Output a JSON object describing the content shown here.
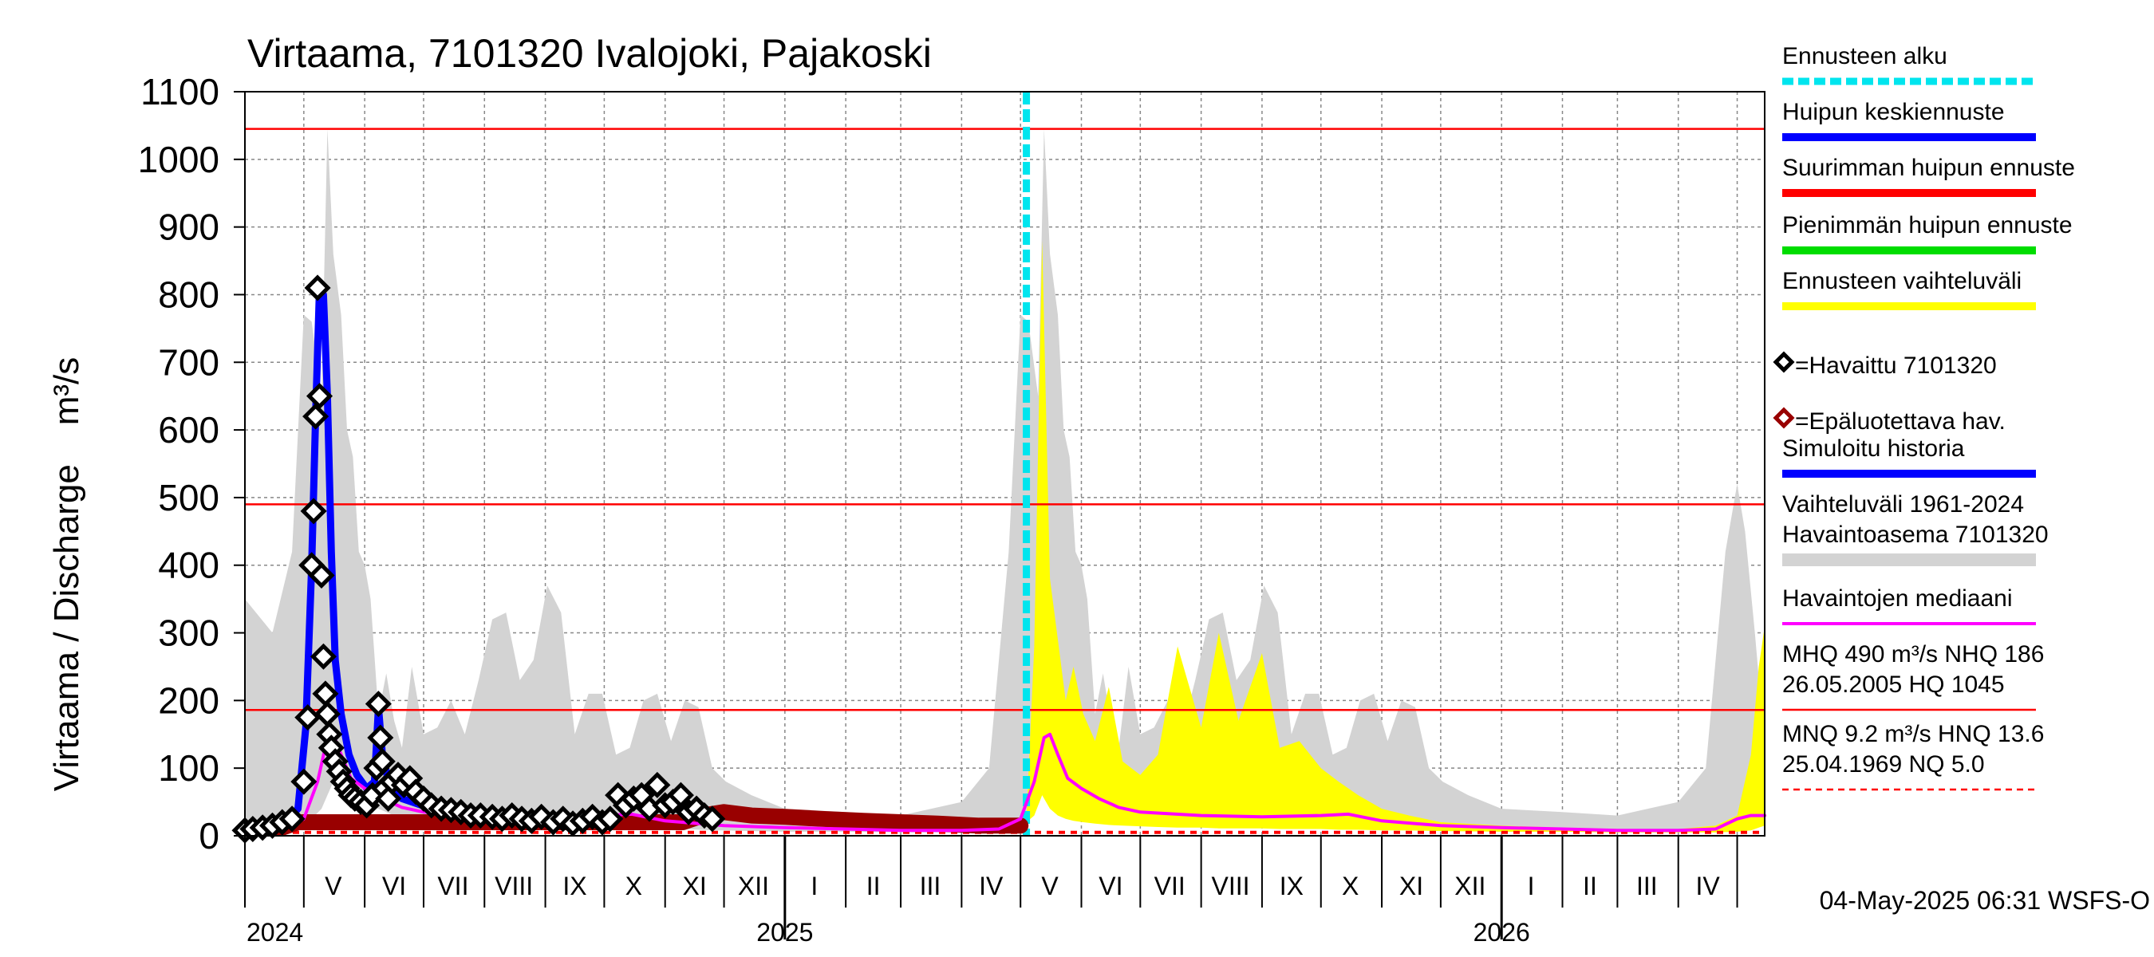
{
  "chart_data": {
    "type": "line",
    "title": "Virtaama, 7101320 Ivalojoki, Pajakoski",
    "ylabel": "Virtaama / Discharge    m³/s",
    "ylim": [
      0,
      1100
    ],
    "yticks": [
      0,
      100,
      200,
      300,
      400,
      500,
      600,
      700,
      800,
      900,
      1000,
      1100
    ],
    "x_range": [
      "2024-04-01",
      "2026-05-15"
    ],
    "month_labels": [
      "V",
      "VI",
      "VII",
      "VIII",
      "IX",
      "X",
      "XI",
      "XII",
      "I",
      "II",
      "III",
      "IV",
      "V",
      "VI",
      "VII",
      "VIII",
      "IX",
      "X",
      "XI",
      "XII",
      "I",
      "II",
      "III",
      "IV"
    ],
    "month_label_dates": [
      "2024-05-16",
      "2024-06-16",
      "2024-07-16",
      "2024-08-16",
      "2024-09-16",
      "2024-10-16",
      "2024-11-16",
      "2024-12-16",
      "2025-01-16",
      "2025-02-15",
      "2025-03-16",
      "2025-04-16",
      "2025-05-16",
      "2025-06-16",
      "2025-07-16",
      "2025-08-16",
      "2025-09-16",
      "2025-10-16",
      "2025-11-16",
      "2025-12-16",
      "2026-01-16",
      "2026-02-15",
      "2026-03-16",
      "2026-04-16"
    ],
    "year_labels": [
      "2024",
      "2025",
      "2026"
    ],
    "year_label_dates": [
      "2024-04-01",
      "2025-01-01",
      "2026-01-01"
    ],
    "forecast_start": "2025-05-04",
    "reference_lines": [
      {
        "name": "HQ",
        "value": 1045,
        "color": "#ff0000",
        "style": "solid"
      },
      {
        "name": "MHQ",
        "value": 490,
        "color": "#ff0000",
        "style": "solid"
      },
      {
        "name": "NHQ",
        "value": 186,
        "color": "#ff0000",
        "style": "solid"
      },
      {
        "name": "NQ",
        "value": 5.0,
        "color": "#ff0000",
        "style": "dashed"
      }
    ],
    "series": [
      {
        "name": "Vaihteluväli 1961-2024",
        "type": "area",
        "color": "#d3d3d3",
        "x": [
          "2024-04-01",
          "2024-04-15",
          "2024-04-25",
          "2024-05-01",
          "2024-05-05",
          "2024-05-10",
          "2024-05-13",
          "2024-05-16",
          "2024-05-20",
          "2024-05-23",
          "2024-05-26",
          "2024-05-29",
          "2024-06-01",
          "2024-06-04",
          "2024-06-08",
          "2024-06-12",
          "2024-06-16",
          "2024-06-20",
          "2024-06-25",
          "2024-07-01",
          "2024-07-08",
          "2024-07-15",
          "2024-07-22",
          "2024-07-29",
          "2024-08-05",
          "2024-08-12",
          "2024-08-19",
          "2024-08-26",
          "2024-09-02",
          "2024-09-09",
          "2024-09-16",
          "2024-09-23",
          "2024-09-30",
          "2024-10-07",
          "2024-10-14",
          "2024-10-21",
          "2024-10-28",
          "2024-11-04",
          "2024-11-11",
          "2024-11-18",
          "2024-11-25",
          "2024-12-02",
          "2024-12-15",
          "2025-01-01",
          "2025-02-01",
          "2025-03-01",
          "2025-04-01",
          "2025-04-15",
          "2025-04-25",
          "2025-05-01",
          "2025-05-05",
          "2025-05-10",
          "2025-05-13",
          "2025-05-16",
          "2025-05-20",
          "2025-05-23",
          "2025-05-26",
          "2025-05-29",
          "2025-06-01",
          "2025-06-04",
          "2025-06-08",
          "2025-06-12",
          "2025-06-16",
          "2025-06-20",
          "2025-06-25",
          "2025-07-01",
          "2025-07-08",
          "2025-07-15",
          "2025-07-22",
          "2025-07-29",
          "2025-08-05",
          "2025-08-12",
          "2025-08-19",
          "2025-08-26",
          "2025-09-02",
          "2025-09-09",
          "2025-09-16",
          "2025-09-23",
          "2025-09-30",
          "2025-10-07",
          "2025-10-14",
          "2025-10-21",
          "2025-10-28",
          "2025-11-04",
          "2025-11-11",
          "2025-11-18",
          "2025-11-25",
          "2025-12-02",
          "2025-12-15",
          "2026-01-01",
          "2026-02-01",
          "2026-03-01",
          "2026-04-01",
          "2026-04-15",
          "2026-04-25",
          "2026-05-01",
          "2026-05-05",
          "2026-05-10",
          "2026-05-13",
          "2026-05-15"
        ],
        "low": [
          6,
          6,
          8,
          15,
          25,
          40,
          60,
          80,
          90,
          85,
          75,
          65,
          55,
          45,
          40,
          35,
          30,
          28,
          25,
          22,
          20,
          18,
          17,
          16,
          16,
          15,
          15,
          16,
          16,
          16,
          17,
          17,
          16,
          15,
          14,
          13,
          12,
          11,
          10,
          9,
          8,
          8,
          7,
          6,
          6,
          5,
          5,
          6,
          10,
          20,
          30,
          50,
          70,
          80,
          90,
          85,
          75,
          65,
          55,
          45,
          40,
          35,
          30,
          28,
          25,
          22,
          20,
          18,
          17,
          16,
          16,
          15,
          15,
          16,
          16,
          16,
          17,
          17,
          16,
          15,
          14,
          13,
          12,
          11,
          10,
          9,
          8,
          8,
          7,
          6,
          6,
          5,
          5,
          6,
          10,
          20,
          30,
          50,
          60,
          70
        ],
        "high": [
          350,
          300,
          420,
          770,
          760,
          650,
          1045,
          860,
          770,
          600,
          560,
          420,
          400,
          350,
          180,
          240,
          170,
          130,
          250,
          150,
          160,
          200,
          150,
          230,
          320,
          330,
          230,
          260,
          370,
          330,
          150,
          210,
          210,
          120,
          130,
          200,
          210,
          140,
          200,
          190,
          100,
          80,
          60,
          40,
          35,
          30,
          50,
          100,
          420,
          770,
          760,
          650,
          1045,
          860,
          770,
          600,
          560,
          420,
          400,
          350,
          180,
          240,
          170,
          130,
          250,
          150,
          160,
          200,
          150,
          230,
          320,
          330,
          230,
          260,
          370,
          330,
          150,
          210,
          210,
          120,
          130,
          200,
          210,
          140,
          200,
          190,
          100,
          80,
          60,
          40,
          35,
          30,
          50,
          100,
          420,
          520,
          450,
          300,
          200,
          150
        ]
      },
      {
        "name": "Ennusteen vaihteluväli",
        "type": "area",
        "color": "#ffff00",
        "x": [
          "2025-05-04",
          "2025-05-08",
          "2025-05-12",
          "2025-05-16",
          "2025-05-20",
          "2025-05-24",
          "2025-05-28",
          "2025-06-02",
          "2025-06-08",
          "2025-06-15",
          "2025-06-22",
          "2025-07-01",
          "2025-07-10",
          "2025-07-20",
          "2025-08-01",
          "2025-08-10",
          "2025-08-20",
          "2025-09-01",
          "2025-09-10",
          "2025-09-20",
          "2025-10-01",
          "2025-10-10",
          "2025-10-20",
          "2025-11-01",
          "2025-11-15",
          "2025-12-01",
          "2026-01-01",
          "2026-02-01",
          "2026-03-01",
          "2026-04-01",
          "2026-04-20",
          "2026-05-01",
          "2026-05-08",
          "2026-05-12",
          "2026-05-15"
        ],
        "low": [
          20,
          30,
          60,
          40,
          30,
          25,
          22,
          20,
          18,
          16,
          15,
          14,
          13,
          12,
          12,
          11,
          11,
          11,
          10,
          10,
          10,
          9,
          9,
          8,
          8,
          7,
          6,
          6,
          5,
          5,
          5,
          6,
          8,
          12,
          15
        ],
        "high": [
          25,
          280,
          880,
          380,
          290,
          200,
          250,
          180,
          140,
          220,
          110,
          90,
          120,
          280,
          160,
          300,
          170,
          270,
          130,
          140,
          100,
          80,
          60,
          40,
          30,
          20,
          15,
          12,
          10,
          10,
          15,
          30,
          120,
          250,
          310
        ]
      },
      {
        "name": "Havaintojen mediaani",
        "type": "line",
        "color": "#ff00ff",
        "width": 4,
        "x": [
          "2024-04-01",
          "2024-04-20",
          "2024-05-01",
          "2024-05-08",
          "2024-05-13",
          "2024-05-16",
          "2024-05-20",
          "2024-05-25",
          "2024-06-01",
          "2024-06-10",
          "2024-06-20",
          "2024-07-01",
          "2024-08-01",
          "2024-09-01",
          "2024-10-01",
          "2024-10-15",
          "2024-11-01",
          "2024-12-01",
          "2025-01-01",
          "2025-02-01",
          "2025-03-01",
          "2025-04-01",
          "2025-04-20",
          "2025-05-01",
          "2025-05-08",
          "2025-05-13",
          "2025-05-16",
          "2025-05-20",
          "2025-05-25",
          "2025-06-01",
          "2025-06-10",
          "2025-06-20",
          "2025-07-01",
          "2025-08-01",
          "2025-09-01",
          "2025-10-01",
          "2025-10-15",
          "2025-11-01",
          "2025-12-01",
          "2026-01-01",
          "2026-02-01",
          "2026-03-01",
          "2026-04-01",
          "2026-04-20",
          "2026-05-01",
          "2026-05-08",
          "2026-05-13",
          "2026-05-15"
        ],
        "values": [
          8,
          8,
          25,
          80,
          145,
          150,
          120,
          85,
          70,
          55,
          42,
          35,
          30,
          28,
          30,
          32,
          22,
          15,
          12,
          10,
          8,
          8,
          10,
          25,
          80,
          145,
          150,
          120,
          85,
          70,
          55,
          42,
          35,
          30,
          28,
          30,
          32,
          22,
          15,
          12,
          10,
          8,
          8,
          10,
          25,
          30,
          30,
          30
        ]
      },
      {
        "name": "Simuloitu historia",
        "type": "line",
        "color": "#0000ff",
        "width": 9,
        "x": [
          "2024-04-01",
          "2024-04-20",
          "2024-04-28",
          "2024-05-02",
          "2024-05-05",
          "2024-05-07",
          "2024-05-09",
          "2024-05-11",
          "2024-05-13",
          "2024-05-15",
          "2024-05-17",
          "2024-05-20",
          "2024-05-24",
          "2024-05-28",
          "2024-06-02",
          "2024-06-06",
          "2024-06-08",
          "2024-06-10",
          "2024-06-14",
          "2024-06-20",
          "2024-06-30"
        ],
        "values": [
          10,
          15,
          40,
          160,
          400,
          620,
          810,
          800,
          650,
          420,
          260,
          180,
          120,
          90,
          70,
          80,
          190,
          120,
          70,
          55,
          45
        ]
      },
      {
        "name": "Epäluotettava hav.",
        "type": "line",
        "color": "#990000",
        "width": 20,
        "x": [
          "2024-04-01",
          "2024-04-20",
          "2024-04-28",
          "2024-11-10",
          "2024-11-20",
          "2024-12-01",
          "2024-12-15",
          "2025-01-01",
          "2025-01-20",
          "2025-02-10",
          "2025-03-01",
          "2025-03-20",
          "2025-04-10",
          "2025-04-25",
          "2025-05-01"
        ],
        "values": [
          10,
          12,
          20,
          20,
          30,
          35,
          30,
          28,
          25,
          22,
          20,
          18,
          15,
          15,
          15
        ]
      },
      {
        "name": "Havaittu 7101320",
        "type": "scatter",
        "color": "#000000",
        "x": [
          "2024-04-01",
          "2024-04-05",
          "2024-04-10",
          "2024-04-15",
          "2024-04-20",
          "2024-04-25",
          "2024-05-01",
          "2024-05-03",
          "2024-05-05",
          "2024-05-06",
          "2024-05-07",
          "2024-05-08",
          "2024-05-09",
          "2024-05-10",
          "2024-05-11",
          "2024-05-12",
          "2024-05-13",
          "2024-05-14",
          "2024-05-15",
          "2024-05-17",
          "2024-05-19",
          "2024-05-21",
          "2024-05-23",
          "2024-05-25",
          "2024-05-27",
          "2024-05-30",
          "2024-06-02",
          "2024-06-05",
          "2024-06-07",
          "2024-06-08",
          "2024-06-09",
          "2024-06-10",
          "2024-06-11",
          "2024-06-13",
          "2024-06-15",
          "2024-06-18",
          "2024-06-21",
          "2024-06-24",
          "2024-06-27",
          "2024-07-01",
          "2024-07-05",
          "2024-07-10",
          "2024-07-15",
          "2024-07-20",
          "2024-07-25",
          "2024-07-30",
          "2024-08-05",
          "2024-08-10",
          "2024-08-15",
          "2024-08-20",
          "2024-08-25",
          "2024-08-30",
          "2024-09-05",
          "2024-09-10",
          "2024-09-15",
          "2024-09-20",
          "2024-09-25",
          "2024-09-30",
          "2024-10-04",
          "2024-10-08",
          "2024-10-12",
          "2024-10-16",
          "2024-10-20",
          "2024-10-24",
          "2024-10-28",
          "2024-11-01",
          "2024-11-05",
          "2024-11-09",
          "2024-11-13",
          "2024-11-17",
          "2024-11-21",
          "2024-11-25"
        ],
        "values": [
          8,
          10,
          12,
          15,
          20,
          25,
          80,
          175,
          400,
          480,
          620,
          810,
          650,
          385,
          265,
          210,
          180,
          150,
          130,
          110,
          95,
          80,
          70,
          60,
          55,
          50,
          45,
          60,
          100,
          195,
          145,
          110,
          70,
          55,
          80,
          90,
          75,
          85,
          65,
          55,
          45,
          40,
          38,
          35,
          30,
          30,
          28,
          25,
          30,
          25,
          22,
          28,
          20,
          25,
          18,
          22,
          28,
          20,
          25,
          60,
          45,
          55,
          60,
          40,
          75,
          45,
          50,
          60,
          35,
          40,
          30,
          25
        ]
      }
    ],
    "legend": [
      {
        "label": "Ennusteen alku",
        "color": "#00e5ee",
        "kind": "dashed"
      },
      {
        "label": "Huipun keskiennuste",
        "color": "#0000ff",
        "kind": "line"
      },
      {
        "label": "Suurimman huipun ennuste",
        "color": "#ff0000",
        "kind": "line"
      },
      {
        "label": "Pienimmän huipun ennuste",
        "color": "#00dd00",
        "kind": "line"
      },
      {
        "label": "Ennusteen vaihteluväli",
        "color": "#ffff00",
        "kind": "line"
      },
      {
        "label": "=Havaittu 7101320",
        "color": "#000000",
        "kind": "diamond"
      },
      {
        "label": "=Epäluotettava hav.",
        "color": "#990000",
        "kind": "diamond"
      },
      {
        "label": "Simuloitu historia",
        "color": "#0000ff",
        "kind": "line"
      },
      {
        "label": "Vaihteluväli 1961-2024\n Havaintoasema 7101320",
        "color": "#d3d3d3",
        "kind": "line"
      },
      {
        "label": "Havaintojen mediaani",
        "color": "#ff00ff",
        "kind": "line"
      },
      {
        "label": "MHQ  490 m³/s NHQ  186\n26.05.2005 HQ 1045",
        "color": "#ff0000",
        "kind": "thin"
      },
      {
        "label": "MNQ  9.2 m³/s HNQ 13.6\n25.04.1969 NQ  5.0",
        "color": "#ff0000",
        "kind": "thin-dashed"
      }
    ],
    "footer": "04-May-2025 06:31 WSFS-O"
  }
}
